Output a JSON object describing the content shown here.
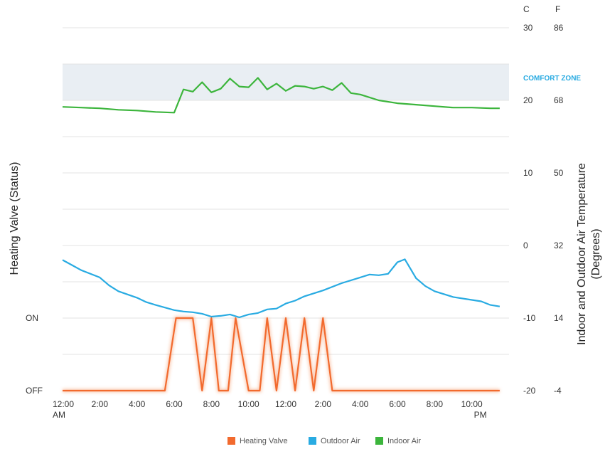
{
  "chart_data": {
    "type": "line",
    "right_axis_header": {
      "c": "C",
      "f": "F"
    },
    "y_left_title": "Heating Valve (Status)",
    "y_right_title_line1": "Indoor and Outdoor Air Temperature",
    "y_right_title_line2": "(Degrees)",
    "ylim": [
      -20,
      33
    ],
    "xlim": [
      0,
      24
    ],
    "comfort_zone": {
      "label": "COMFORT ZONE",
      "range": [
        20,
        25
      ],
      "color": "#e9eef3"
    },
    "celsius_ticks": [
      30,
      20,
      10,
      0,
      -10,
      -20
    ],
    "celsius_tick_labels": [
      "30",
      "20",
      "10",
      "0",
      "-10",
      "-20"
    ],
    "fahrenheit_tick_labels": [
      "86",
      "68",
      "50",
      "32",
      "14",
      "-4"
    ],
    "status_ticks": [
      {
        "label": "ON",
        "y": -10
      },
      {
        "label": "OFF",
        "y": -20
      }
    ],
    "x_ticks": [
      {
        "x": 0,
        "line1": "12:00",
        "line2": "AM"
      },
      {
        "x": 2,
        "line1": "2:00",
        "line2": ""
      },
      {
        "x": 4,
        "line1": "4:00",
        "line2": ""
      },
      {
        "x": 6,
        "line1": "6:00",
        "line2": ""
      },
      {
        "x": 8,
        "line1": "8:00",
        "line2": ""
      },
      {
        "x": 10,
        "line1": "10:00",
        "line2": ""
      },
      {
        "x": 12,
        "line1": "12:00",
        "line2": ""
      },
      {
        "x": 14,
        "line1": "2:00",
        "line2": ""
      },
      {
        "x": 16,
        "line1": "4:00",
        "line2": ""
      },
      {
        "x": 18,
        "line1": "6:00",
        "line2": ""
      },
      {
        "x": 20,
        "line1": "8:00",
        "line2": ""
      },
      {
        "x": 22,
        "line1": "10:00",
        "line2": "PM"
      }
    ],
    "series": [
      {
        "name": "Indoor Air",
        "color": "#3cb53c",
        "points": [
          [
            0,
            19.1
          ],
          [
            1,
            19.0
          ],
          [
            2,
            18.9
          ],
          [
            3,
            18.7
          ],
          [
            4,
            18.6
          ],
          [
            5,
            18.4
          ],
          [
            6,
            18.3
          ],
          [
            6.5,
            21.5
          ],
          [
            7,
            21.2
          ],
          [
            7.5,
            22.5
          ],
          [
            8,
            21.1
          ],
          [
            8.5,
            21.6
          ],
          [
            9,
            23.0
          ],
          [
            9.5,
            21.9
          ],
          [
            10,
            21.8
          ],
          [
            10.5,
            23.1
          ],
          [
            11,
            21.5
          ],
          [
            11.5,
            22.3
          ],
          [
            12,
            21.3
          ],
          [
            12.5,
            22.0
          ],
          [
            13,
            21.9
          ],
          [
            13.5,
            21.6
          ],
          [
            14,
            21.9
          ],
          [
            14.5,
            21.4
          ],
          [
            15,
            22.4
          ],
          [
            15.5,
            21.0
          ],
          [
            16,
            20.8
          ],
          [
            17,
            20.0
          ],
          [
            18,
            19.6
          ],
          [
            19,
            19.4
          ],
          [
            20,
            19.2
          ],
          [
            21,
            19.0
          ],
          [
            22,
            19.0
          ],
          [
            23,
            18.9
          ],
          [
            23.5,
            18.9
          ]
        ]
      },
      {
        "name": "Outdoor Air",
        "color": "#29abe2",
        "points": [
          [
            0,
            -2.0
          ],
          [
            0.5,
            -2.7
          ],
          [
            1,
            -3.4
          ],
          [
            2,
            -4.4
          ],
          [
            2.5,
            -5.5
          ],
          [
            3,
            -6.3
          ],
          [
            4,
            -7.2
          ],
          [
            4.5,
            -7.8
          ],
          [
            5,
            -8.2
          ],
          [
            6,
            -8.9
          ],
          [
            6.5,
            -9.1
          ],
          [
            7,
            -9.2
          ],
          [
            7.5,
            -9.4
          ],
          [
            8,
            -9.8
          ],
          [
            8.5,
            -9.7
          ],
          [
            9,
            -9.5
          ],
          [
            9.5,
            -9.9
          ],
          [
            10,
            -9.5
          ],
          [
            10.5,
            -9.3
          ],
          [
            11,
            -8.8
          ],
          [
            11.5,
            -8.7
          ],
          [
            12,
            -8.0
          ],
          [
            12.5,
            -7.6
          ],
          [
            13,
            -7.0
          ],
          [
            14,
            -6.2
          ],
          [
            15,
            -5.2
          ],
          [
            16,
            -4.4
          ],
          [
            16.5,
            -4.0
          ],
          [
            17,
            -4.1
          ],
          [
            17.5,
            -3.9
          ],
          [
            18,
            -2.3
          ],
          [
            18.4,
            -1.9
          ],
          [
            19,
            -4.5
          ],
          [
            19.5,
            -5.6
          ],
          [
            20,
            -6.3
          ],
          [
            21,
            -7.1
          ],
          [
            22,
            -7.5
          ],
          [
            22.5,
            -7.7
          ],
          [
            23,
            -8.2
          ],
          [
            23.5,
            -8.4
          ]
        ]
      },
      {
        "name": "Heating Valve",
        "color": "#f26a2e",
        "points": [
          [
            0,
            -20
          ],
          [
            5.5,
            -20
          ],
          [
            6.1,
            -10
          ],
          [
            7,
            -10
          ],
          [
            7.5,
            -20
          ],
          [
            8,
            -10
          ],
          [
            8.4,
            -20
          ],
          [
            8.9,
            -20
          ],
          [
            9.3,
            -10
          ],
          [
            10,
            -20
          ],
          [
            10.6,
            -20
          ],
          [
            11,
            -10
          ],
          [
            11.5,
            -20
          ],
          [
            12,
            -10
          ],
          [
            12.5,
            -20
          ],
          [
            13,
            -10
          ],
          [
            13.5,
            -20
          ],
          [
            14,
            -10
          ],
          [
            14.5,
            -20
          ],
          [
            23.5,
            -20
          ]
        ]
      }
    ],
    "legend": [
      {
        "label": "Heating Valve",
        "color": "#f26a2e"
      },
      {
        "label": "Outdoor Air",
        "color": "#29abe2"
      },
      {
        "label": "Indoor Air",
        "color": "#3cb53c"
      }
    ]
  }
}
